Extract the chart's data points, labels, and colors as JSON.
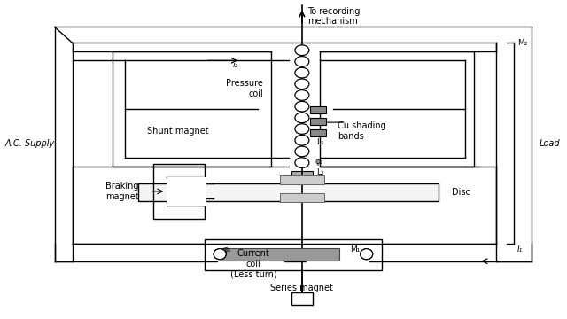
{
  "line_color": "#000000",
  "labels": {
    "ac_supply": "A.C. Supply",
    "load": "Load",
    "shunt_magnet": "Shunt magnet",
    "pressure_coil": "Pressure\ncoil",
    "cu_shading": "Cu shading\nbands",
    "braking_magnet": "Braking\nmagnet",
    "current_coil": "Current\ncoil\n(Less turn)",
    "series_magnet": "Series magnet",
    "disc": "Disc",
    "to_recording": "To recording\nmechanism",
    "i2": "i₂",
    "phi2": "φ₂",
    "phi1": "φ₁",
    "L1": "L₁",
    "L2": "L₂",
    "M1": "M₁",
    "M2": "M₂",
    "I1": "I₁"
  }
}
